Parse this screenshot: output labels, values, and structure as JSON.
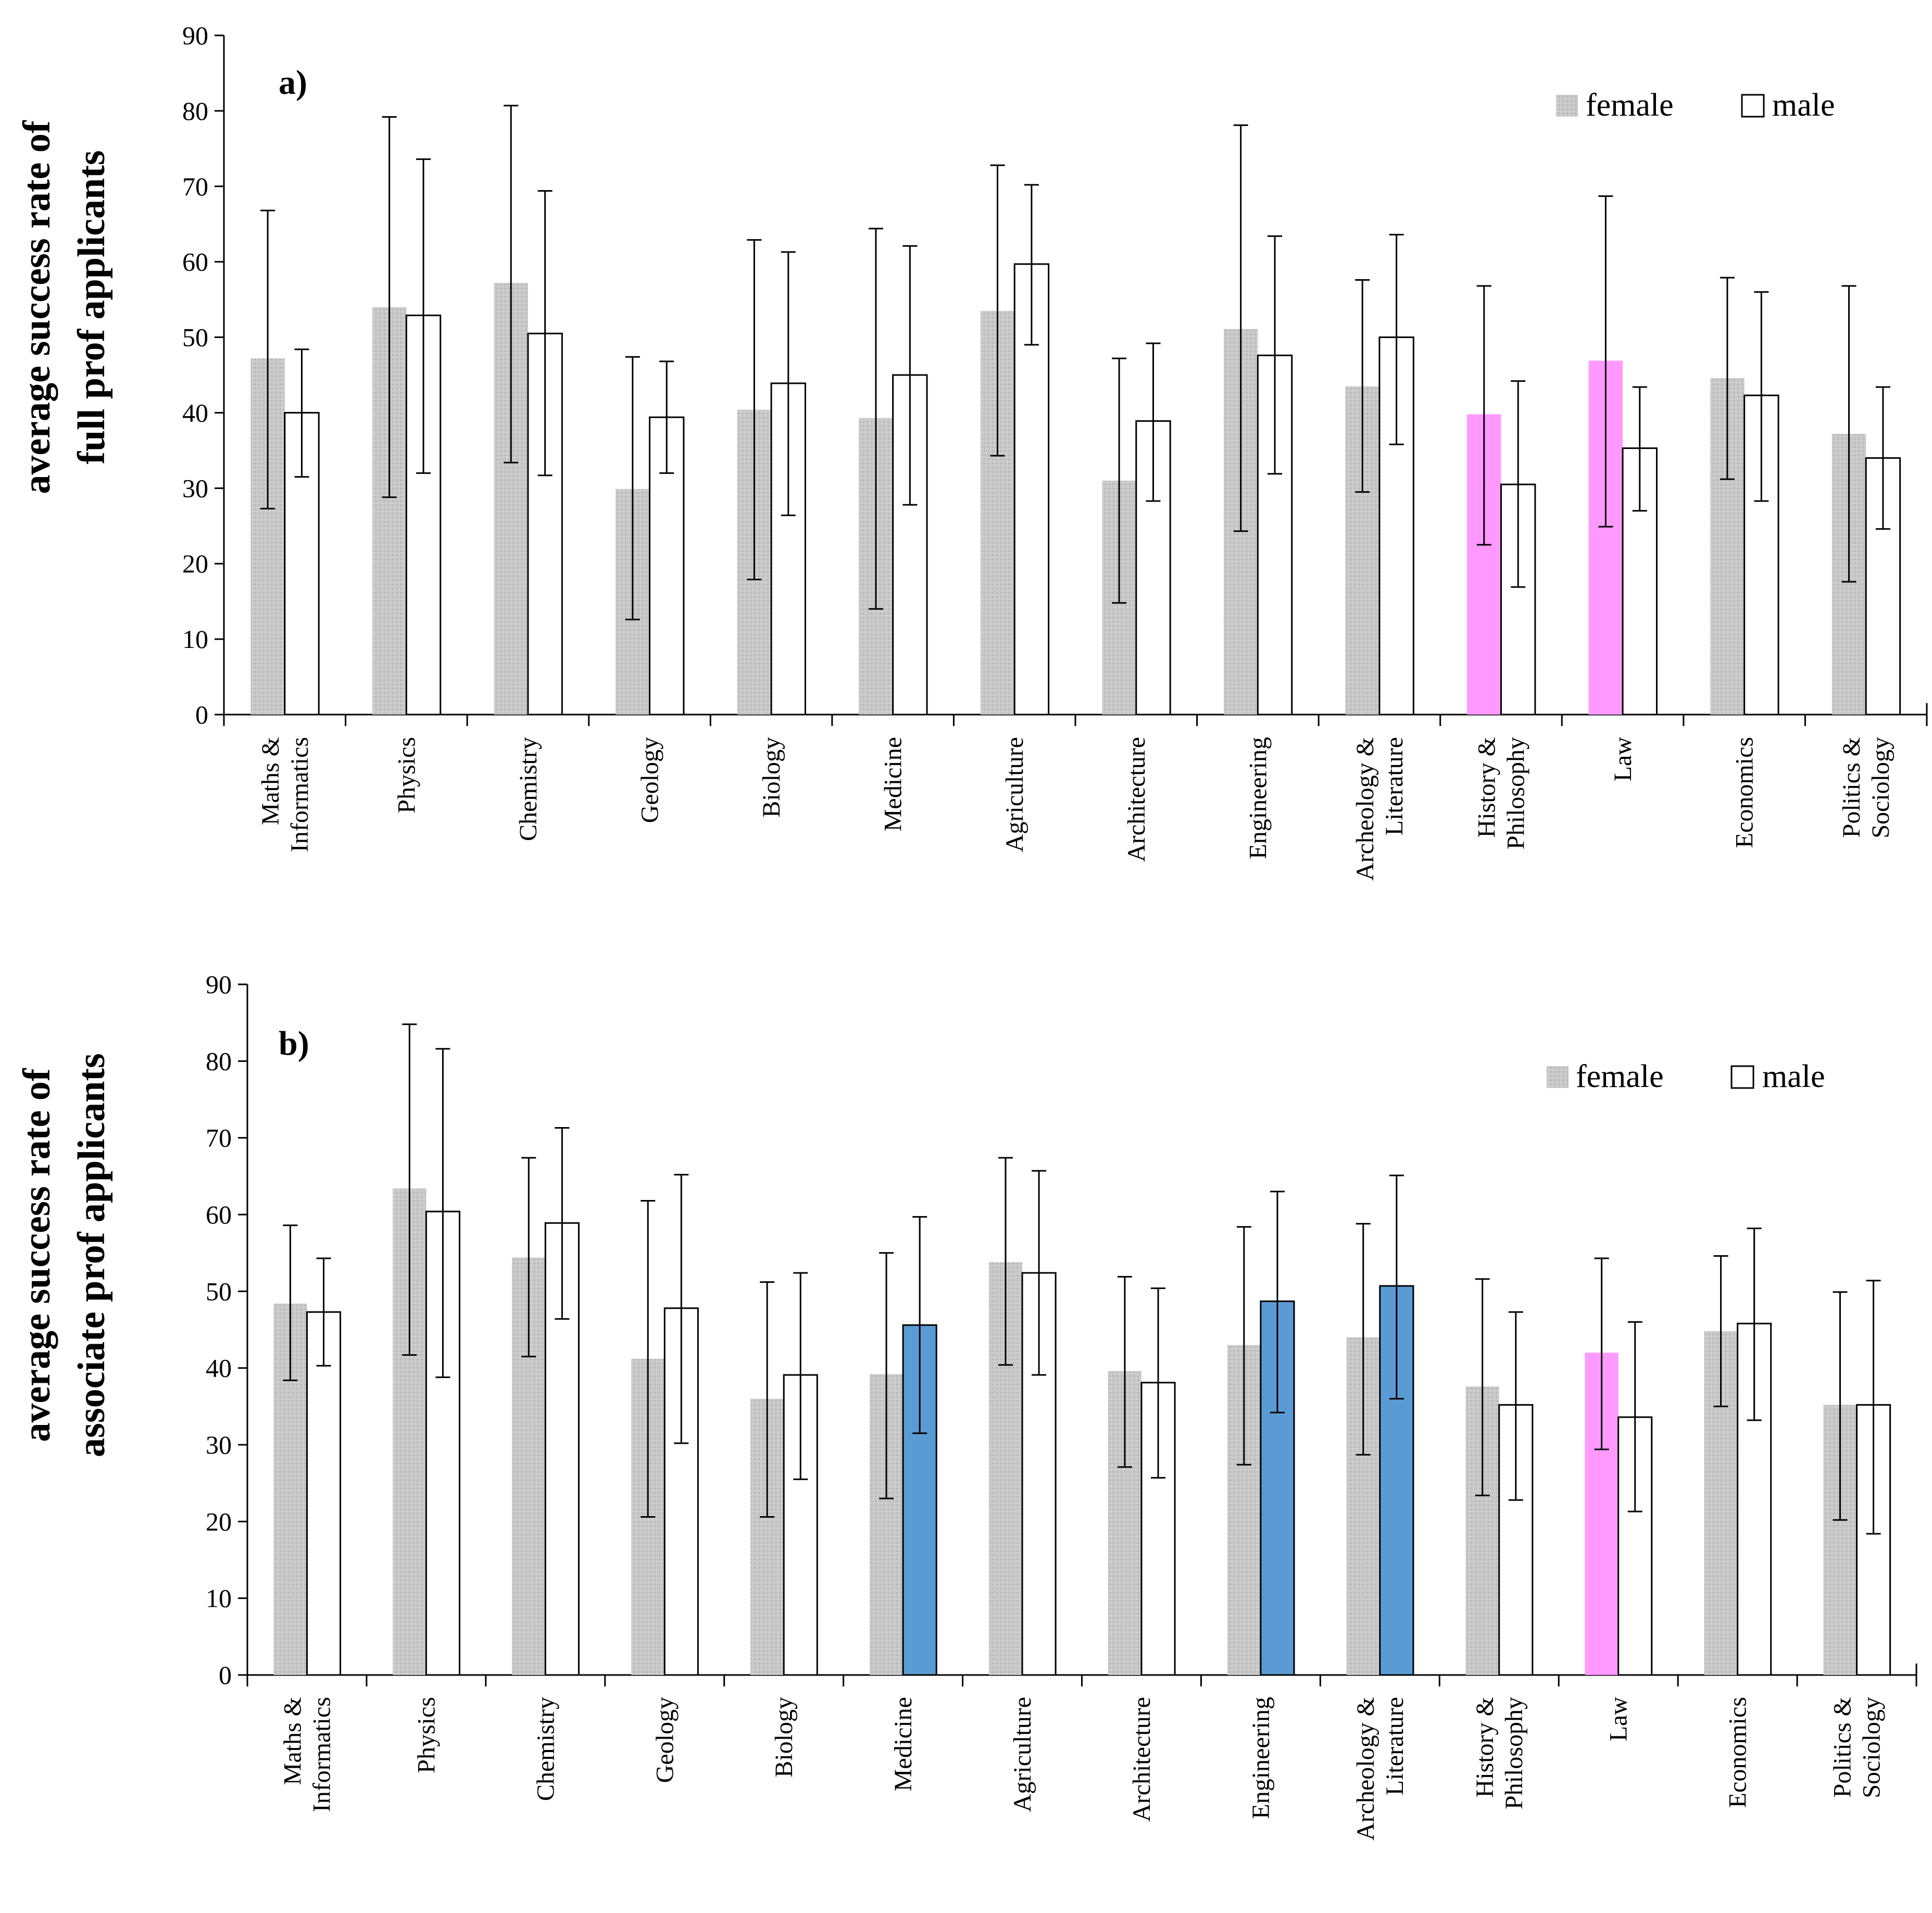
{
  "colors": {
    "female": "#c8c8c8",
    "male": "#ffffff",
    "highlight_female": "#ff99ff",
    "highlight_male": "#5b9bd5",
    "axis": "#000000"
  },
  "chart_data": [
    {
      "type": "bar",
      "panel_label": "a)",
      "ylabel_line1": "average success rate of",
      "ylabel_line2": "full prof applicants",
      "ylim": [
        0,
        90
      ],
      "yticks": [
        0,
        10,
        20,
        30,
        40,
        50,
        60,
        70,
        80,
        90
      ],
      "legend": {
        "position": "top-right",
        "entries": [
          "female",
          "male"
        ]
      },
      "categories": [
        [
          "Maths &",
          "Informatics"
        ],
        [
          "Physics"
        ],
        [
          "Chemistry"
        ],
        [
          "Geology"
        ],
        [
          "Biology"
        ],
        [
          "Medicine"
        ],
        [
          "Agriculture"
        ],
        [
          "Architecture"
        ],
        [
          "Engineering"
        ],
        [
          "Archeology &",
          "Literature"
        ],
        [
          "History &",
          "Philosophy"
        ],
        [
          "Law"
        ],
        [
          "Economics"
        ],
        [
          "Politics &",
          "Sociology"
        ]
      ],
      "series": [
        {
          "name": "female",
          "values": [
            47.2,
            54.0,
            57.2,
            29.9,
            40.4,
            39.3,
            53.5,
            31.0,
            51.1,
            43.5,
            39.8,
            46.9,
            44.6,
            37.2
          ],
          "err_low": [
            27.3,
            28.8,
            33.4,
            12.6,
            17.9,
            14.0,
            34.3,
            14.8,
            24.3,
            29.5,
            22.5,
            24.9,
            31.2,
            17.6
          ],
          "err_high": [
            66.8,
            79.2,
            80.7,
            47.4,
            62.9,
            64.4,
            72.8,
            47.2,
            78.1,
            57.6,
            56.8,
            68.7,
            57.9,
            56.8
          ],
          "highlight": [
            false,
            false,
            false,
            false,
            false,
            false,
            false,
            false,
            false,
            false,
            true,
            true,
            false,
            false
          ]
        },
        {
          "name": "male",
          "values": [
            40.0,
            52.9,
            50.5,
            39.4,
            43.9,
            45.0,
            59.7,
            38.9,
            47.6,
            50.0,
            30.5,
            35.3,
            42.3,
            34.0
          ],
          "err_low": [
            31.5,
            32.0,
            31.7,
            32.0,
            26.4,
            27.8,
            49.0,
            28.3,
            31.9,
            35.8,
            16.9,
            27.0,
            28.3,
            24.6
          ],
          "err_high": [
            48.4,
            73.6,
            69.4,
            46.8,
            61.3,
            62.1,
            70.2,
            49.2,
            63.4,
            63.6,
            44.2,
            43.4,
            56.0,
            43.4
          ],
          "highlight": [
            false,
            false,
            false,
            false,
            false,
            false,
            false,
            false,
            false,
            false,
            false,
            false,
            false,
            false
          ]
        }
      ]
    },
    {
      "type": "bar",
      "panel_label": "b)",
      "ylabel_line1": "average success rate of",
      "ylabel_line2": "associate prof applicants",
      "ylim": [
        0,
        90
      ],
      "yticks": [
        0,
        10,
        20,
        30,
        40,
        50,
        60,
        70,
        80,
        90
      ],
      "legend": {
        "position": "top-right",
        "entries": [
          "female",
          "male"
        ]
      },
      "categories": [
        [
          "Maths &",
          "Informatics"
        ],
        [
          "Physics"
        ],
        [
          "Chemistry"
        ],
        [
          "Geology"
        ],
        [
          "Biology"
        ],
        [
          "Medicine"
        ],
        [
          "Agriculture"
        ],
        [
          "Architecture"
        ],
        [
          "Engineering"
        ],
        [
          "Archeology &",
          "Literature"
        ],
        [
          "History &",
          "Philosophy"
        ],
        [
          "Law"
        ],
        [
          "Economics"
        ],
        [
          "Politics &",
          "Sociology"
        ]
      ],
      "series": [
        {
          "name": "female",
          "values": [
            48.4,
            63.4,
            54.4,
            41.2,
            36.0,
            39.2,
            53.8,
            39.6,
            43.0,
            44.0,
            37.6,
            42.0,
            44.8,
            35.2
          ],
          "err_low": [
            38.4,
            41.7,
            41.5,
            20.6,
            20.6,
            23.0,
            40.4,
            27.1,
            27.4,
            28.7,
            23.4,
            29.4,
            35.0,
            20.2
          ],
          "err_high": [
            58.6,
            84.8,
            67.4,
            61.8,
            51.2,
            55.0,
            67.4,
            51.9,
            58.4,
            58.8,
            51.6,
            54.3,
            54.6,
            49.9
          ],
          "highlight": [
            false,
            false,
            false,
            false,
            false,
            false,
            false,
            false,
            false,
            false,
            false,
            true,
            false,
            false
          ]
        },
        {
          "name": "male",
          "values": [
            47.3,
            60.4,
            58.9,
            47.8,
            39.1,
            45.6,
            52.4,
            38.1,
            48.7,
            50.7,
            35.2,
            33.6,
            45.8,
            35.2
          ],
          "err_low": [
            40.3,
            38.8,
            46.4,
            30.2,
            25.5,
            31.5,
            39.1,
            25.7,
            34.2,
            36.0,
            22.8,
            21.3,
            33.2,
            18.4
          ],
          "err_high": [
            54.3,
            81.6,
            71.3,
            65.2,
            52.4,
            59.7,
            65.7,
            50.4,
            63.0,
            65.1,
            47.3,
            46.0,
            58.2,
            51.4
          ],
          "highlight": [
            false,
            false,
            false,
            false,
            false,
            true,
            false,
            false,
            true,
            true,
            false,
            false,
            false,
            false
          ]
        }
      ]
    }
  ]
}
